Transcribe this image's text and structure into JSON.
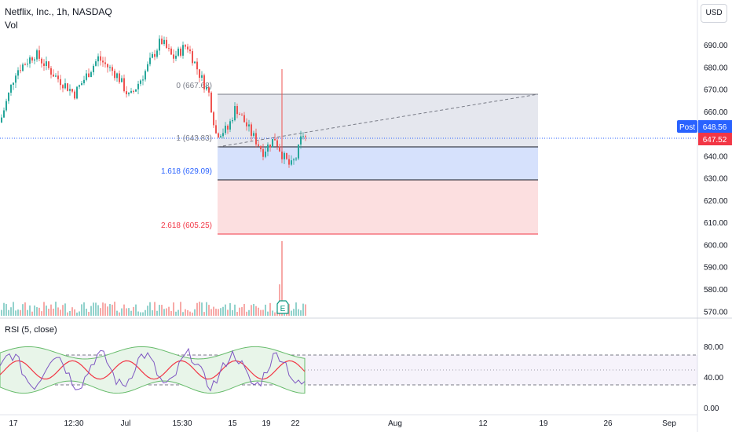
{
  "header": {
    "symbol_title": "Netflix, Inc., 1h, NASDAQ",
    "volume_label": "Vol",
    "currency_button": "USD"
  },
  "colors": {
    "up": "#26a69a",
    "down": "#ef5350",
    "fib_0_fill": "#e0e3eb",
    "fib_1_fill": "#cfdcfb",
    "fib_2_fill": "#fcd9da",
    "rsi_line": "#7e57c2",
    "rsi_band": "#e8f5e9",
    "rsi_signal": "#f23645",
    "post_badge": "#2962ff",
    "last_badge": "#f23645"
  },
  "chart_data": [
    {
      "type": "candlestick",
      "title": "Netflix, Inc., 1h, NASDAQ",
      "ylim": [
        566,
        700
      ],
      "yticks": [
        690,
        680,
        670,
        660,
        650,
        640,
        630,
        620,
        610,
        600,
        590,
        580,
        570
      ],
      "ytick_labels": [
        "690.00",
        "680.00",
        "670.00",
        "660.00",
        "650.00",
        "640.00",
        "630.00",
        "620.00",
        "610.00",
        "600.00",
        "590.00",
        "580.00",
        "570.00"
      ],
      "xticks": [
        "17",
        "12:30",
        "Jul",
        "15:30",
        "15",
        "19",
        "22",
        "Aug",
        "12",
        "19",
        "26",
        "Sep"
      ],
      "fib_extension": [
        {
          "level": "0",
          "value": 667.68,
          "label": "0 (667.68)"
        },
        {
          "level": "1",
          "value": 643.83,
          "label": "1 (643.83)"
        },
        {
          "level": "1.618",
          "value": 629.09,
          "label": "1.618 (629.09)"
        },
        {
          "level": "2.618",
          "value": 605.25,
          "label": "2.618 (605.25)"
        }
      ],
      "post_price": {
        "label": "Post",
        "value": "648.56"
      },
      "last_price": {
        "value": "647.52"
      },
      "earnings_marker": "E"
    },
    {
      "type": "line",
      "title": "RSI (5, close)",
      "ylim": [
        0,
        100
      ],
      "yticks": [
        "80.00",
        "40.00",
        "0.00"
      ],
      "overbought": 70,
      "oversold": 30,
      "midline": 50
    }
  ]
}
